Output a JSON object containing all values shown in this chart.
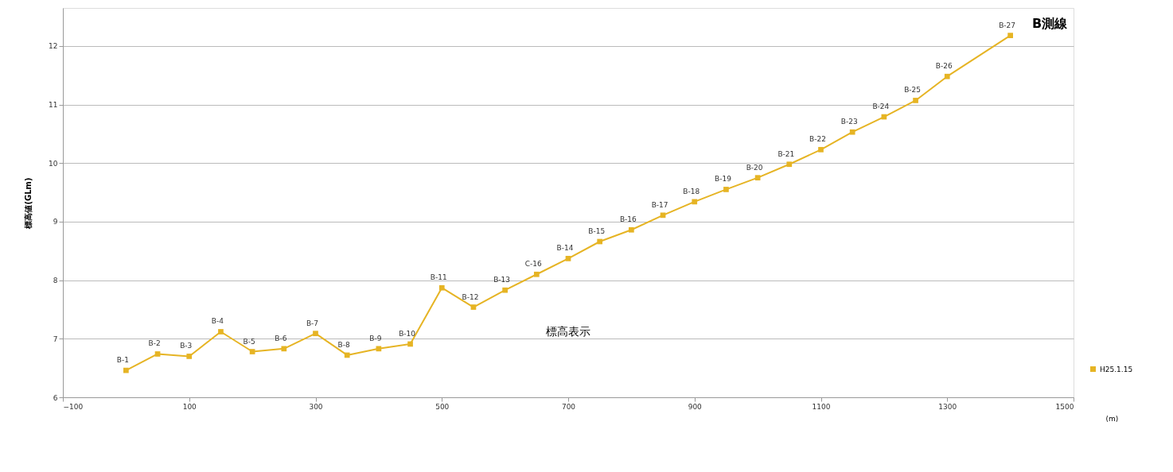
{
  "chart_data": {
    "type": "line",
    "ylabel": "標高値(GLm)",
    "xlabel": "(m)",
    "legend": "right",
    "grid": "y",
    "marker": "square",
    "xlim": [
      -100,
      1500
    ],
    "xticks": [
      -100,
      100,
      300,
      500,
      700,
      900,
      1100,
      1300,
      1500
    ],
    "ylim": [
      6,
      12.65
    ],
    "yticks": [
      6,
      7,
      8,
      9,
      10,
      11,
      12
    ],
    "x": [
      0,
      50,
      100,
      150,
      200,
      250,
      300,
      350,
      400,
      450,
      500,
      550,
      600,
      650,
      700,
      750,
      800,
      850,
      900,
      950,
      1000,
      1050,
      1100,
      1150,
      1200,
      1250,
      1300,
      1400
    ],
    "series": [
      {
        "name": "H25.1.15",
        "color": "#e6b424",
        "values": [
          6.46,
          6.74,
          6.7,
          7.12,
          6.78,
          6.83,
          7.09,
          6.72,
          6.83,
          6.91,
          7.87,
          7.54,
          7.83,
          8.1,
          8.37,
          8.66,
          8.86,
          9.11,
          9.34,
          9.55,
          9.75,
          9.98,
          10.23,
          10.53,
          10.79,
          11.07,
          11.48,
          12.18
        ]
      }
    ],
    "annotations": [
      {
        "text": "B-1",
        "x": 0,
        "y": 6.46
      },
      {
        "text": "B-2",
        "x": 50,
        "y": 6.74
      },
      {
        "text": "B-3",
        "x": 100,
        "y": 6.7
      },
      {
        "text": "B-4",
        "x": 150,
        "y": 7.12
      },
      {
        "text": "B-5",
        "x": 200,
        "y": 6.78
      },
      {
        "text": "B-6",
        "x": 250,
        "y": 6.83
      },
      {
        "text": "B-7",
        "x": 300,
        "y": 7.09
      },
      {
        "text": "B-8",
        "x": 350,
        "y": 6.72
      },
      {
        "text": "B-9",
        "x": 400,
        "y": 6.83
      },
      {
        "text": "B-10",
        "x": 450,
        "y": 6.91
      },
      {
        "text": "B-11",
        "x": 500,
        "y": 7.87
      },
      {
        "text": "B-12",
        "x": 550,
        "y": 7.54
      },
      {
        "text": "B-13",
        "x": 600,
        "y": 7.83
      },
      {
        "text": "C-16",
        "x": 650,
        "y": 8.1
      },
      {
        "text": "B-14",
        "x": 700,
        "y": 8.37
      },
      {
        "text": "B-15",
        "x": 750,
        "y": 8.66
      },
      {
        "text": "B-16",
        "x": 800,
        "y": 8.86
      },
      {
        "text": "B-17",
        "x": 850,
        "y": 9.11
      },
      {
        "text": "B-18",
        "x": 900,
        "y": 9.34
      },
      {
        "text": "B-19",
        "x": 950,
        "y": 9.55
      },
      {
        "text": "B-20",
        "x": 1000,
        "y": 9.75
      },
      {
        "text": "B-21",
        "x": 1050,
        "y": 9.98
      },
      {
        "text": "B-22",
        "x": 1100,
        "y": 10.23
      },
      {
        "text": "B-23",
        "x": 1150,
        "y": 10.53
      },
      {
        "text": "B-24",
        "x": 1200,
        "y": 10.79
      },
      {
        "text": "B-25",
        "x": 1250,
        "y": 11.07
      },
      {
        "text": "B-26",
        "x": 1300,
        "y": 11.48
      },
      {
        "text": "B-27",
        "x": 1400,
        "y": 12.18
      },
      "B測線",
      "標高表示"
    ]
  }
}
